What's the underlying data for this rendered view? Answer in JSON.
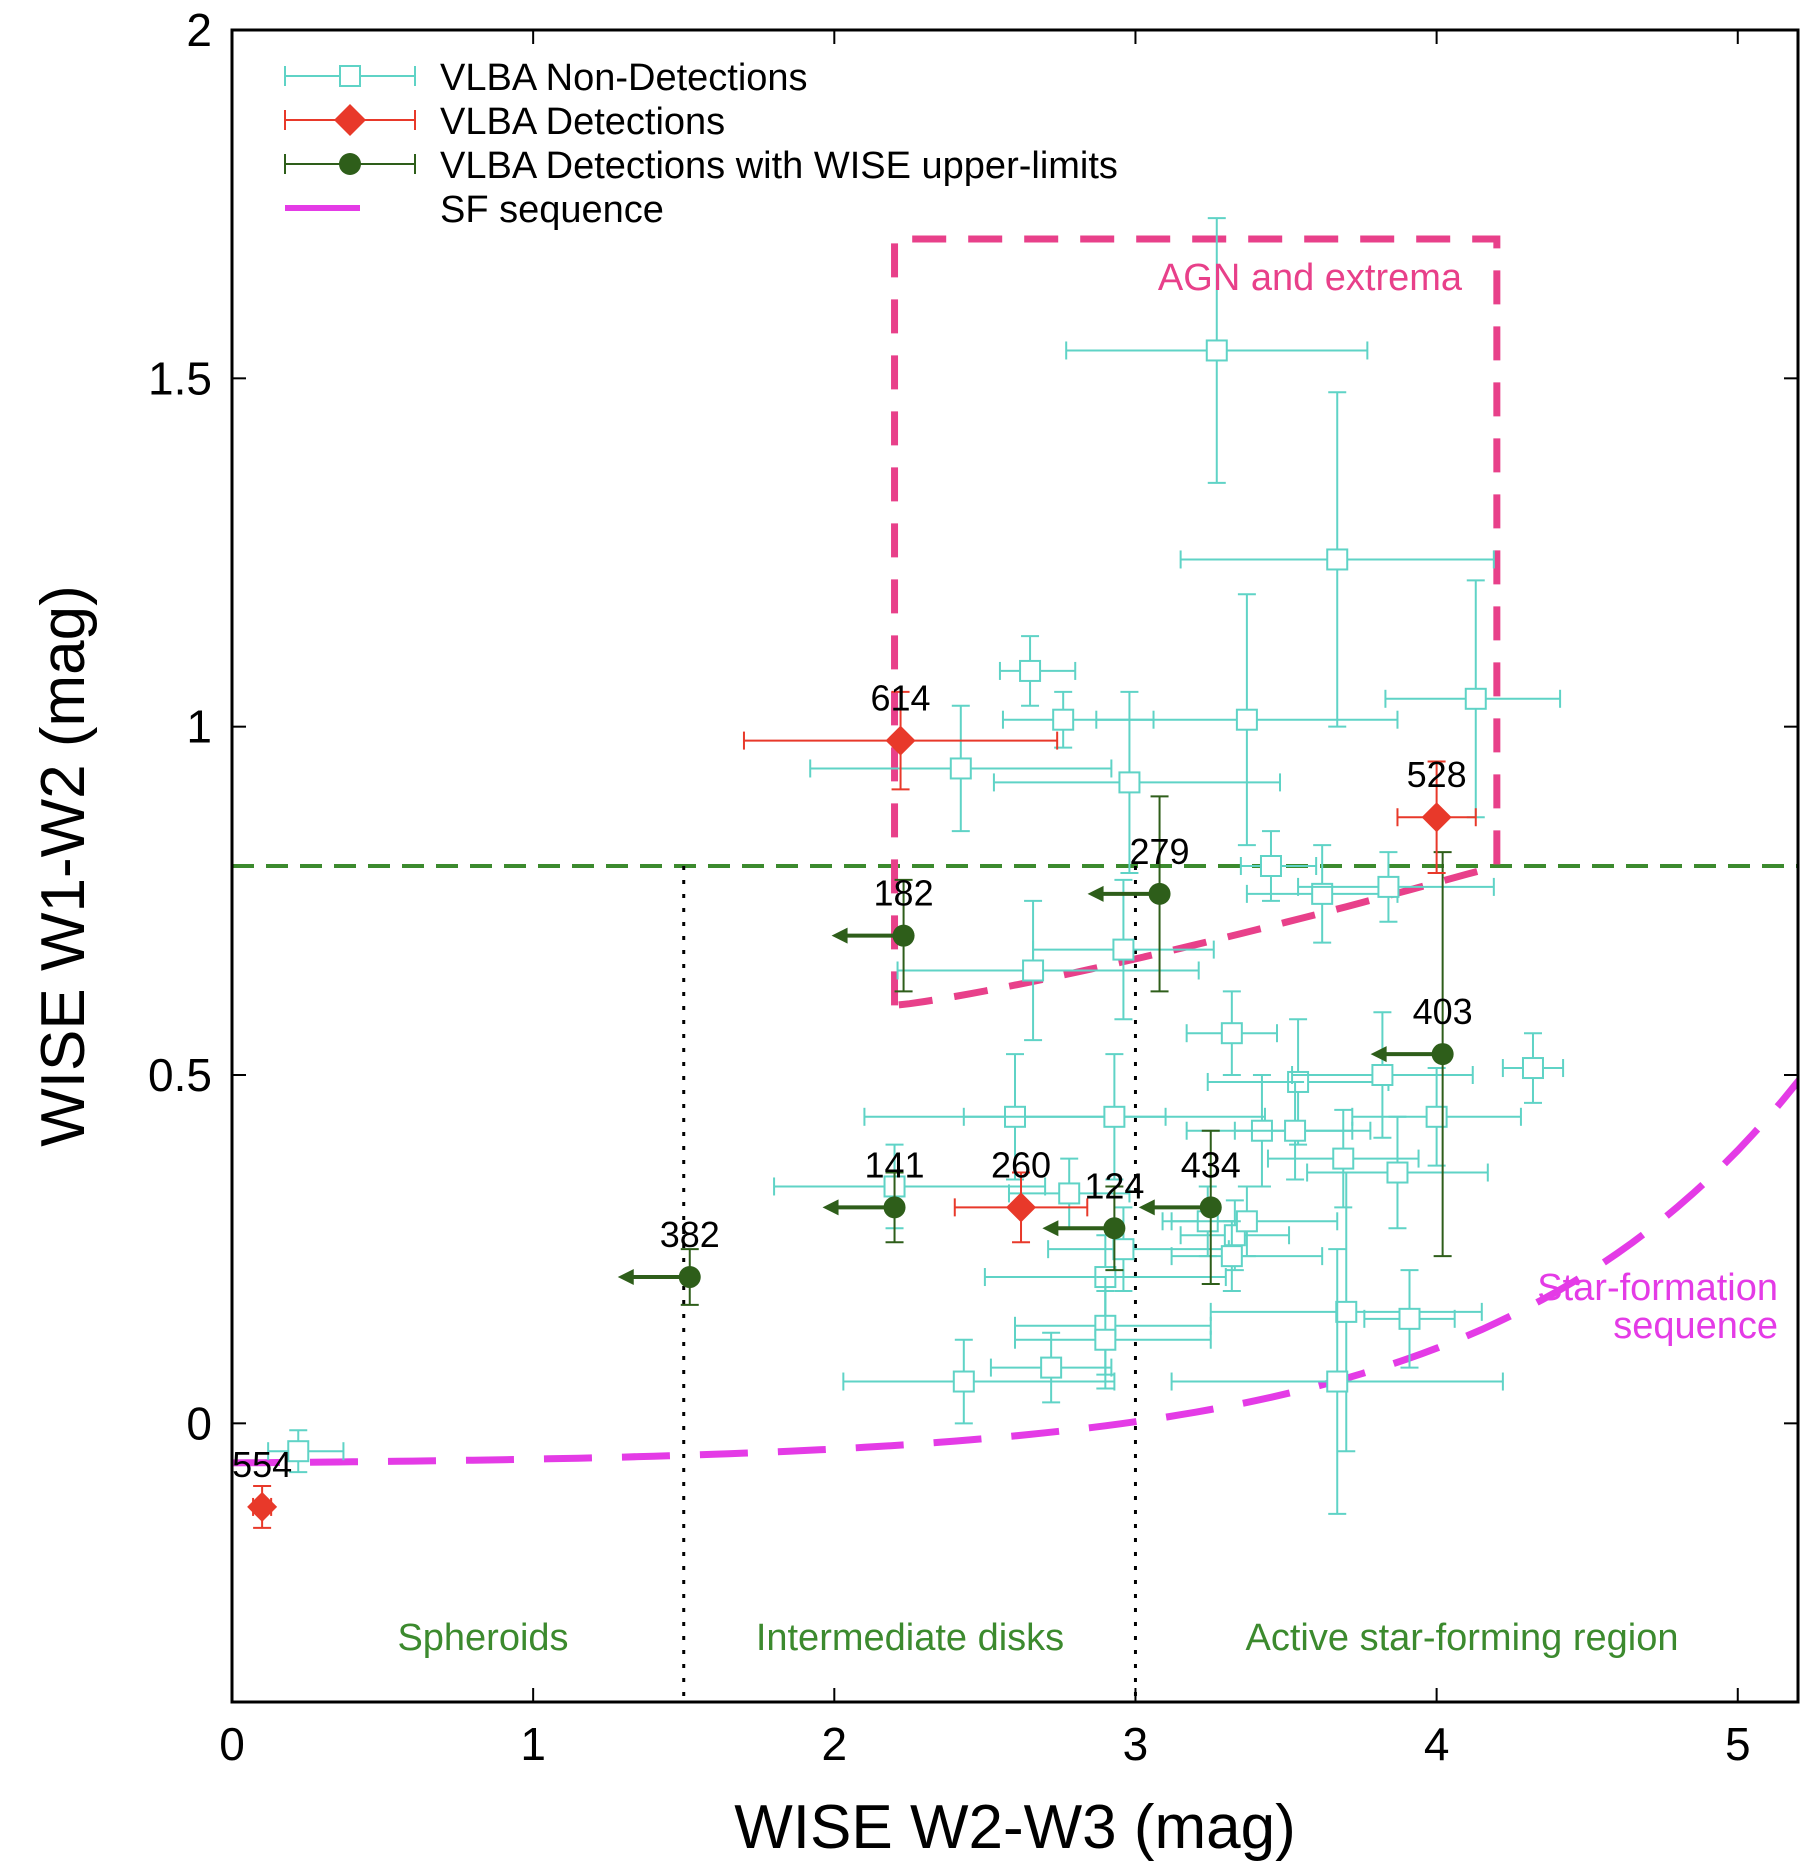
{
  "chart_data": {
    "type": "scatter",
    "xlabel": "WISE W2-W3 (mag)",
    "ylabel": "WISE W1-W2 (mag)",
    "xlim": [
      0,
      5.2
    ],
    "ylim": [
      -0.4,
      2.0
    ],
    "xticks": [
      0,
      1,
      2,
      3,
      4,
      5
    ],
    "xtick_labels": [
      "0",
      "1",
      "2",
      "3",
      "4",
      "5"
    ],
    "yticks": [
      0,
      0.5,
      1,
      1.5,
      2
    ],
    "ytick_labels": [
      "0",
      "0.5",
      "1",
      "1.5",
      "2"
    ],
    "legend": [
      "VLBA Non-Detections",
      "VLBA Detections",
      "VLBA Detections with WISE upper-limits",
      "SF sequence"
    ],
    "colors": {
      "nondet": "#5fd3c6",
      "det": "#e8392a",
      "upper": "#2e5e1a",
      "sf": "#e43be6",
      "agn": "#e8408a",
      "green_line": "#3c8a2e"
    },
    "series": [
      {
        "name": "VLBA Non-Detections",
        "points": [
          {
            "x": 0.22,
            "y": -0.04,
            "xerr": [
              0.1,
              0.15
            ],
            "yerr": [
              0.03,
              0.03
            ]
          },
          {
            "x": 2.42,
            "y": 0.94,
            "xerr": [
              0.5,
              0.5
            ],
            "yerr": [
              0.09,
              0.09
            ]
          },
          {
            "x": 2.65,
            "y": 1.08,
            "xerr": [
              0.1,
              0.15
            ],
            "yerr": [
              0.05,
              0.05
            ]
          },
          {
            "x": 2.76,
            "y": 1.01,
            "xerr": [
              0.2,
              0.3
            ],
            "yerr": [
              0.04,
              0.04
            ]
          },
          {
            "x": 2.98,
            "y": 0.92,
            "xerr": [
              0.45,
              0.5
            ],
            "yerr": [
              0.13,
              0.13
            ]
          },
          {
            "x": 3.27,
            "y": 1.54,
            "xerr": [
              0.5,
              0.5
            ],
            "yerr": [
              0.19,
              0.19
            ]
          },
          {
            "x": 3.67,
            "y": 1.24,
            "xerr": [
              0.52,
              0.52
            ],
            "yerr": [
              0.24,
              0.24
            ]
          },
          {
            "x": 3.37,
            "y": 1.01,
            "xerr": [
              0.5,
              0.5
            ],
            "yerr": [
              0.18,
              0.18
            ]
          },
          {
            "x": 4.13,
            "y": 1.04,
            "xerr": [
              0.3,
              0.28
            ],
            "yerr": [
              0.17,
              0.17
            ]
          },
          {
            "x": 2.66,
            "y": 0.65,
            "xerr": [
              0.45,
              0.55
            ],
            "yerr": [
              0.1,
              0.1
            ]
          },
          {
            "x": 2.96,
            "y": 0.68,
            "xerr": [
              0.3,
              0.3
            ],
            "yerr": [
              0.1,
              0.1
            ]
          },
          {
            "x": 3.45,
            "y": 0.8,
            "xerr": [
              0.1,
              0.15
            ],
            "yerr": [
              0.05,
              0.05
            ]
          },
          {
            "x": 3.62,
            "y": 0.76,
            "xerr": [
              0.25,
              0.25
            ],
            "yerr": [
              0.07,
              0.07
            ]
          },
          {
            "x": 3.84,
            "y": 0.77,
            "xerr": [
              0.3,
              0.35
            ],
            "yerr": [
              0.05,
              0.05
            ]
          },
          {
            "x": 3.32,
            "y": 0.56,
            "xerr": [
              0.15,
              0.15
            ],
            "yerr": [
              0.06,
              0.06
            ]
          },
          {
            "x": 3.54,
            "y": 0.49,
            "xerr": [
              0.3,
              0.3
            ],
            "yerr": [
              0.09,
              0.09
            ]
          },
          {
            "x": 3.82,
            "y": 0.5,
            "xerr": [
              0.3,
              0.3
            ],
            "yerr": [
              0.09,
              0.09
            ]
          },
          {
            "x": 4.32,
            "y": 0.51,
            "xerr": [
              0.1,
              0.1
            ],
            "yerr": [
              0.05,
              0.05
            ]
          },
          {
            "x": 2.6,
            "y": 0.44,
            "xerr": [
              0.5,
              0.5
            ],
            "yerr": [
              0.09,
              0.09
            ]
          },
          {
            "x": 2.93,
            "y": 0.44,
            "xerr": [
              0.5,
              0.5
            ],
            "yerr": [
              0.09,
              0.09
            ]
          },
          {
            "x": 3.42,
            "y": 0.42,
            "xerr": [
              0.25,
              0.3
            ],
            "yerr": [
              0.08,
              0.08
            ]
          },
          {
            "x": 3.53,
            "y": 0.42,
            "xerr": [
              0.2,
              0.25
            ],
            "yerr": [
              0.07,
              0.07
            ]
          },
          {
            "x": 3.69,
            "y": 0.38,
            "xerr": [
              0.25,
              0.25
            ],
            "yerr": [
              0.07,
              0.07
            ]
          },
          {
            "x": 3.87,
            "y": 0.36,
            "xerr": [
              0.3,
              0.3
            ],
            "yerr": [
              0.08,
              0.08
            ]
          },
          {
            "x": 4.0,
            "y": 0.44,
            "xerr": [
              0.28,
              0.28
            ],
            "yerr": [
              0.07,
              0.07
            ]
          },
          {
            "x": 2.2,
            "y": 0.34,
            "xerr": [
              0.4,
              0.5
            ],
            "yerr": [
              0.06,
              0.06
            ]
          },
          {
            "x": 2.78,
            "y": 0.33,
            "xerr": [
              0.2,
              0.2
            ],
            "yerr": [
              0.05,
              0.05
            ]
          },
          {
            "x": 3.24,
            "y": 0.29,
            "xerr": [
              0.15,
              0.15
            ],
            "yerr": [
              0.05,
              0.05
            ]
          },
          {
            "x": 3.33,
            "y": 0.27,
            "xerr": [
              0.18,
              0.18
            ],
            "yerr": [
              0.05,
              0.05
            ]
          },
          {
            "x": 3.37,
            "y": 0.29,
            "xerr": [
              0.25,
              0.3
            ],
            "yerr": [
              0.05,
              0.05
            ]
          },
          {
            "x": 2.96,
            "y": 0.25,
            "xerr": [
              0.25,
              0.35
            ],
            "yerr": [
              0.06,
              0.06
            ]
          },
          {
            "x": 3.32,
            "y": 0.24,
            "xerr": [
              0.2,
              0.3
            ],
            "yerr": [
              0.05,
              0.05
            ]
          },
          {
            "x": 2.9,
            "y": 0.21,
            "xerr": [
              0.4,
              0.4
            ],
            "yerr": [
              0.06,
              0.06
            ]
          },
          {
            "x": 3.7,
            "y": 0.16,
            "xerr": [
              0.45,
              0.45
            ],
            "yerr": [
              0.2,
              0.2
            ]
          },
          {
            "x": 3.91,
            "y": 0.15,
            "xerr": [
              0.15,
              0.15
            ],
            "yerr": [
              0.07,
              0.07
            ]
          },
          {
            "x": 2.9,
            "y": 0.14,
            "xerr": [
              0.3,
              0.35
            ],
            "yerr": [
              0.07,
              0.07
            ]
          },
          {
            "x": 2.9,
            "y": 0.12,
            "xerr": [
              0.3,
              0.35
            ],
            "yerr": [
              0.07,
              0.07
            ]
          },
          {
            "x": 2.72,
            "y": 0.08,
            "xerr": [
              0.2,
              0.2
            ],
            "yerr": [
              0.05,
              0.05
            ]
          },
          {
            "x": 2.43,
            "y": 0.06,
            "xerr": [
              0.4,
              0.5
            ],
            "yerr": [
              0.06,
              0.06
            ]
          },
          {
            "x": 3.67,
            "y": 0.06,
            "xerr": [
              0.55,
              0.55
            ],
            "yerr": [
              0.19,
              0.19
            ]
          }
        ]
      },
      {
        "name": "VLBA Detections",
        "points": [
          {
            "x": 2.22,
            "y": 0.98,
            "xerr": [
              0.52,
              0.52
            ],
            "yerr": [
              0.07,
              0.07
            ],
            "label": "614"
          },
          {
            "x": 4.0,
            "y": 0.87,
            "xerr": [
              0.13,
              0.13
            ],
            "yerr": [
              0.08,
              0.08
            ],
            "label": "528"
          },
          {
            "x": 2.62,
            "y": 0.31,
            "xerr": [
              0.22,
              0.22
            ],
            "yerr": [
              0.05,
              0.05
            ],
            "label": "260"
          },
          {
            "x": 0.1,
            "y": -0.12,
            "xerr": [
              0.03,
              0.03
            ],
            "yerr": [
              0.03,
              0.03
            ],
            "label": "554"
          }
        ]
      },
      {
        "name": "VLBA Detections with WISE upper-limits",
        "points": [
          {
            "x": 2.23,
            "y": 0.7,
            "yerr": [
              0.08,
              0.08
            ],
            "label": "182"
          },
          {
            "x": 3.08,
            "y": 0.76,
            "yerr": [
              0.14,
              0.14
            ],
            "label": "279"
          },
          {
            "x": 4.02,
            "y": 0.53,
            "yerr": [
              0.29,
              0.29
            ],
            "label": "403"
          },
          {
            "x": 2.2,
            "y": 0.31,
            "yerr": [
              0.05,
              0.05
            ],
            "label": "141"
          },
          {
            "x": 2.93,
            "y": 0.28,
            "yerr": [
              0.06,
              0.06
            ],
            "label": "124"
          },
          {
            "x": 3.25,
            "y": 0.31,
            "yerr": [
              0.11,
              0.11
            ],
            "label": "434"
          },
          {
            "x": 1.52,
            "y": 0.21,
            "yerr": [
              0.04,
              0.04
            ],
            "label": "382"
          }
        ]
      }
    ],
    "annotations": {
      "agn": "AGN and extrema",
      "sfs_line1": "Star-formation",
      "sfs_line2": "sequence",
      "region1": "Spheroids",
      "region2": "Intermediate disks",
      "region3": "Active star-forming region"
    },
    "threshold_y": 0.8,
    "divider_x": [
      1.5,
      3.0
    ]
  }
}
